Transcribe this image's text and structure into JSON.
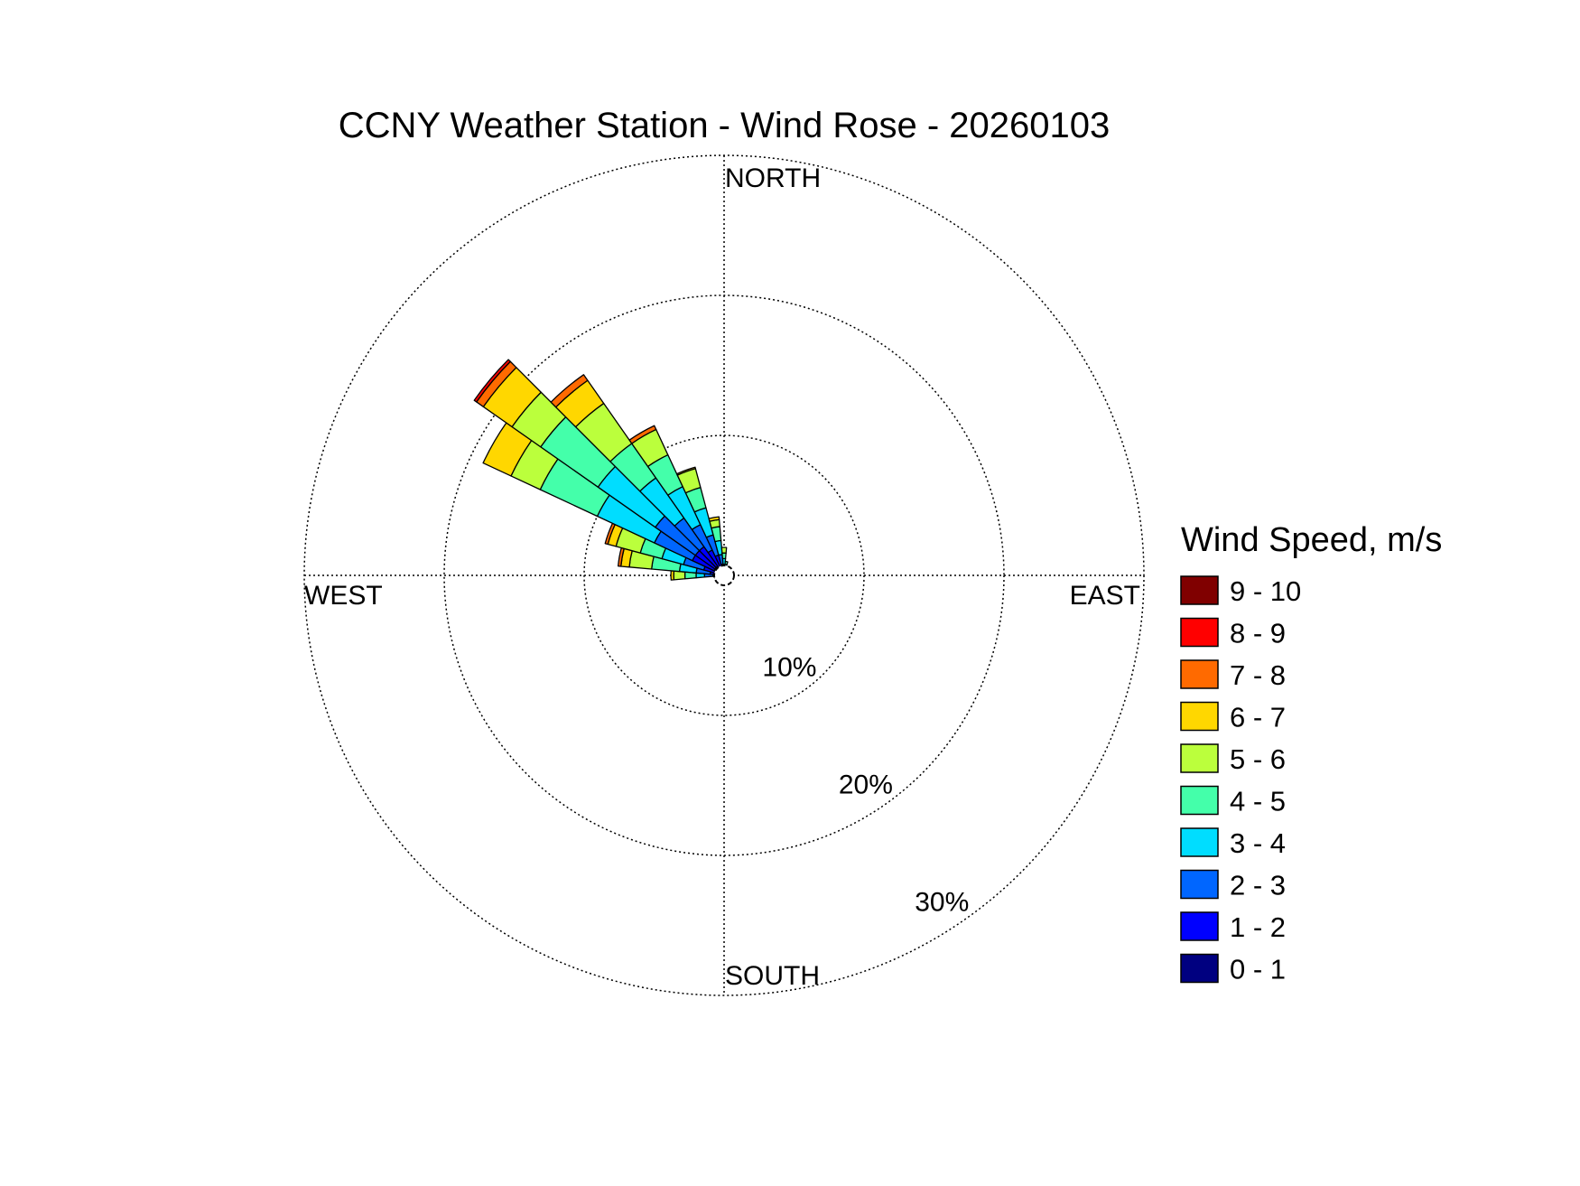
{
  "chart_data": {
    "type": "wind-rose",
    "title": "CCNY Weather Station - Wind Rose - 20260103",
    "directions": {
      "north": "NORTH",
      "south": "SOUTH",
      "east": "EAST",
      "west": "WEST"
    },
    "rings": [
      {
        "value": 10,
        "label": "10%"
      },
      {
        "value": 20,
        "label": "20%"
      },
      {
        "value": 30,
        "label": "30%"
      }
    ],
    "radial_max": 30,
    "sector_width_deg": 10,
    "legend": {
      "title": "Wind Speed, m/s",
      "entries": [
        {
          "label": "9 - 10",
          "color": "#800000"
        },
        {
          "label": "8 - 9",
          "color": "#ff0000"
        },
        {
          "label": "7 - 8",
          "color": "#ff6a00"
        },
        {
          "label": "6 - 7",
          "color": "#ffd700"
        },
        {
          "label": "5 - 6",
          "color": "#bbff3c"
        },
        {
          "label": "4 - 5",
          "color": "#44ffaa"
        },
        {
          "label": "3 - 4",
          "color": "#00ddff"
        },
        {
          "label": "2 - 3",
          "color": "#0066ff"
        },
        {
          "label": "1 - 2",
          "color": "#0000ff"
        },
        {
          "label": "0 - 1",
          "color": "#000080"
        }
      ]
    },
    "bins": [
      "0 - 1",
      "1 - 2",
      "2 - 3",
      "3 - 4",
      "4 - 5",
      "5 - 6",
      "6 - 7",
      "7 - 8",
      "8 - 9",
      "9 - 10"
    ],
    "sectors": [
      {
        "direction_deg": 270,
        "cumulative": [
          0.2,
          0.8,
          1.4,
          2.0,
          2.8,
          3.6,
          3.8,
          3.8,
          3.8,
          3.8
        ]
      },
      {
        "direction_deg": 280,
        "cumulative": [
          0.4,
          1.0,
          2.0,
          3.2,
          5.2,
          6.8,
          7.4,
          7.6,
          7.6,
          7.6
        ]
      },
      {
        "direction_deg": 290,
        "cumulative": [
          0.5,
          1.5,
          3.0,
          4.6,
          6.2,
          8.0,
          8.6,
          8.8,
          8.8,
          8.8
        ]
      },
      {
        "direction_deg": 300,
        "cumulative": [
          0.8,
          2.5,
          5.5,
          10.0,
          14.5,
          16.8,
          19.0,
          19.0,
          19.0,
          19.0
        ]
      },
      {
        "direction_deg": 310,
        "cumulative": [
          0.8,
          2.5,
          6.0,
          11.0,
          16.0,
          18.5,
          21.0,
          21.6,
          21.8,
          21.8
        ]
      },
      {
        "direction_deg": 320,
        "cumulative": [
          0.8,
          2.5,
          5.0,
          8.5,
          11.5,
          15.0,
          17.0,
          17.5,
          17.5,
          17.5
        ]
      },
      {
        "direction_deg": 330,
        "cumulative": [
          0.6,
          2.0,
          4.0,
          7.0,
          9.5,
          11.5,
          11.5,
          11.8,
          11.8,
          11.8
        ]
      },
      {
        "direction_deg": 340,
        "cumulative": [
          0.4,
          1.5,
          3.0,
          5.0,
          6.5,
          7.9,
          8.0,
          8.0,
          8.0,
          8.0
        ]
      },
      {
        "direction_deg": 350,
        "cumulative": [
          0.3,
          0.8,
          1.5,
          2.5,
          3.5,
          4.0,
          4.2,
          4.2,
          4.2,
          4.2
        ]
      },
      {
        "direction_deg": 0,
        "cumulative": [
          0.2,
          0.5,
          0.8,
          1.2,
          1.6,
          2.0,
          2.0,
          2.0,
          2.0,
          2.0
        ]
      },
      {
        "direction_deg": 10,
        "cumulative": [
          0.2,
          0.4,
          0.6,
          0.8,
          1.0,
          1.0,
          1.0,
          1.0,
          1.0,
          1.0
        ]
      },
      {
        "direction_deg": 20,
        "cumulative": [
          0.1,
          0.2,
          0.3,
          0.4,
          0.4,
          0.4,
          0.4,
          0.4,
          0.4,
          0.4
        ]
      },
      {
        "direction_deg": 260,
        "cumulative": [
          0.2,
          0.4,
          0.5,
          0.6,
          0.7,
          0.7,
          0.7,
          0.7,
          0.7,
          0.7
        ]
      },
      {
        "direction_deg": 250,
        "cumulative": [
          0.2,
          0.3,
          0.4,
          0.4,
          0.4,
          0.4,
          0.4,
          0.4,
          0.4,
          0.4
        ]
      },
      {
        "direction_deg": 240,
        "cumulative": [
          0.1,
          0.2,
          0.3,
          0.3,
          0.3,
          0.3,
          0.3,
          0.3,
          0.3,
          0.3
        ]
      },
      {
        "direction_deg": 90,
        "cumulative": [
          0.2,
          0.2,
          0.2,
          0.2,
          0.2,
          0.2,
          0.2,
          0.2,
          0.2,
          0.2
        ]
      },
      {
        "direction_deg": 120,
        "cumulative": [
          0.15,
          0.15,
          0.15,
          0.15,
          0.15,
          0.15,
          0.15,
          0.15,
          0.15,
          0.15
        ]
      },
      {
        "direction_deg": 180,
        "cumulative": [
          0.15,
          0.15,
          0.15,
          0.15,
          0.15,
          0.15,
          0.15,
          0.15,
          0.15,
          0.15
        ]
      }
    ]
  }
}
